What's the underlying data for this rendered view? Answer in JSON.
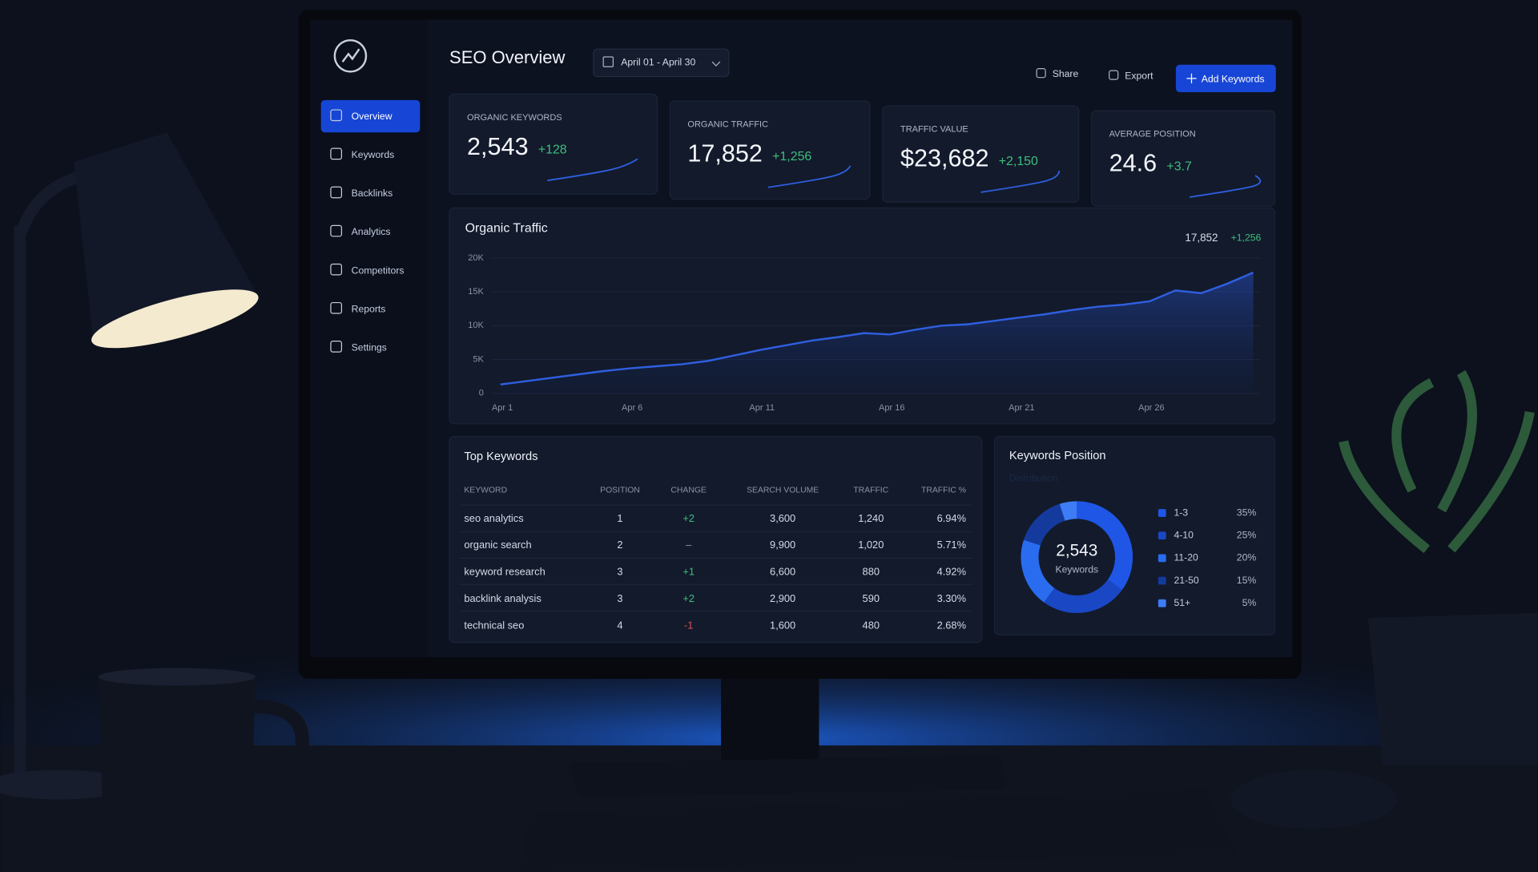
{
  "header": {
    "title": "SEO Overview",
    "date_range": "April 01 - April 30",
    "actions": [
      "Share",
      "Export",
      "Add Keywords"
    ]
  },
  "sidebar": {
    "items": [
      "Overview",
      "Keywords",
      "Backlinks",
      "Analytics",
      "Competitors",
      "Reports",
      "Settings"
    ]
  },
  "kpis": [
    {
      "label": "ORGANIC KEYWORDS",
      "value": "2,543",
      "change": "+128"
    },
    {
      "label": "ORGANIC TRAFFIC",
      "value": "17,852",
      "change": "+1,256"
    },
    {
      "label": "TRAFFIC VALUE",
      "value": "$23,682",
      "change": "+2,150"
    },
    {
      "label": "AVERAGE POSITION",
      "value": "24.6",
      "change": "+3.7"
    }
  ],
  "chart_data": [
    {
      "type": "line",
      "title": "Organic Traffic",
      "summary_value": "17,852",
      "summary_change": "+1,256",
      "color": "#2f5fe0",
      "categories": [
        "Apr 1",
        null,
        null,
        null,
        null,
        "Apr 6",
        null,
        null,
        null,
        null,
        "Apr 11",
        null,
        null,
        null,
        null,
        "Apr 16",
        null,
        null,
        null,
        null,
        "Apr 21",
        null,
        null,
        null,
        null,
        "Apr 26",
        null,
        null,
        null,
        null
      ],
      "values": [
        1300,
        1800,
        2300,
        2800,
        3300,
        3700,
        4000,
        4300,
        4800,
        5600,
        6400,
        7100,
        7800,
        8300,
        8900,
        8700,
        9400,
        10000,
        10200,
        10700,
        11200,
        11700,
        12300,
        12800,
        13100,
        13600,
        15200,
        14800,
        16200,
        17852
      ],
      "ylim": [
        0,
        20000
      ],
      "yticks": [
        0,
        {
          "value": 5000,
          "label": "5K"
        },
        {
          "value": 10000,
          "label": "10K"
        },
        {
          "value": 15000,
          "label": "15K"
        },
        {
          "value": 20000,
          "label": "20K"
        }
      ],
      "grid": true
    },
    {
      "type": "donut",
      "title": "Keywords Position",
      "subtitle": "Distribution",
      "center_value": "2,543",
      "center_label": "Keywords",
      "categories": [
        "1-3",
        "4-10",
        "11-20",
        "21-50",
        "51+"
      ],
      "values": [
        35,
        25,
        20,
        15,
        5
      ],
      "value_labels": [
        "35%",
        "25%",
        "20%",
        "15%",
        "5%"
      ],
      "colors": [
        "#1f56e6",
        "#1a47c4",
        "#2a6cf0",
        "#153a9e",
        "#3d7cf5"
      ]
    }
  ],
  "table": {
    "title": "Top Keywords",
    "columns": [
      "KEYWORD",
      "POSITION",
      "CHANGE",
      "SEARCH VOLUME",
      "TRAFFIC",
      "TRAFFIC %"
    ],
    "rows": [
      [
        "seo analytics",
        "1",
        "+2",
        "3,600",
        "1,240",
        "6.94%"
      ],
      [
        "organic search",
        "2",
        "–",
        "9,900",
        "1,020",
        "5.71%"
      ],
      [
        "keyword research",
        "3",
        "+1",
        "6,600",
        "880",
        "4.92%"
      ],
      [
        "backlink analysis",
        "3",
        "+2",
        "2,900",
        "590",
        "3.30%"
      ],
      [
        "technical seo",
        "4",
        "-1",
        "1,600",
        "480",
        "2.68%"
      ]
    ]
  }
}
